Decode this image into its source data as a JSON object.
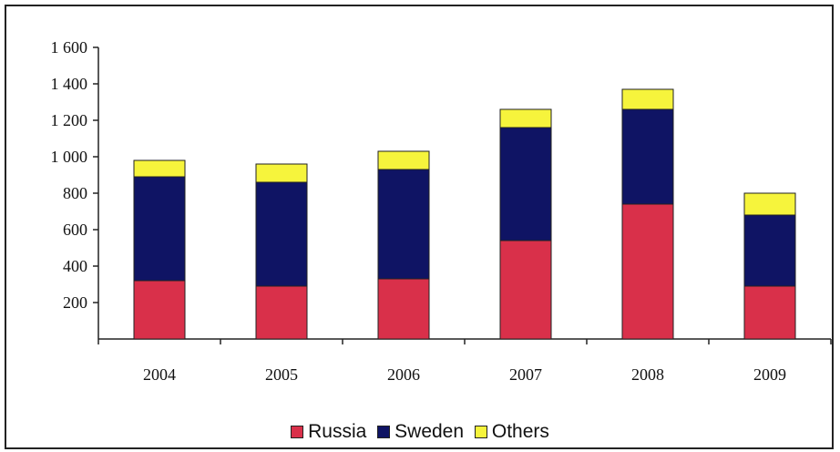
{
  "chart_data": {
    "type": "bar",
    "stacked": true,
    "categories": [
      "2004",
      "2005",
      "2006",
      "2007",
      "2008",
      "2009"
    ],
    "series": [
      {
        "name": "Russia",
        "color": "#d9304a",
        "values": [
          320,
          290,
          330,
          540,
          740,
          290
        ]
      },
      {
        "name": "Sweden",
        "color": "#0f1464",
        "values": [
          570,
          570,
          600,
          620,
          520,
          390
        ]
      },
      {
        "name": "Others",
        "color": "#f6f43c",
        "values": [
          90,
          100,
          100,
          100,
          110,
          120
        ]
      }
    ],
    "y_ticks": [
      "200",
      "400",
      "600",
      "800",
      "1 000",
      "1 200",
      "1 400",
      "1 600"
    ],
    "ylim": [
      0,
      1600
    ],
    "grid": false,
    "legend_position": "bottom"
  }
}
